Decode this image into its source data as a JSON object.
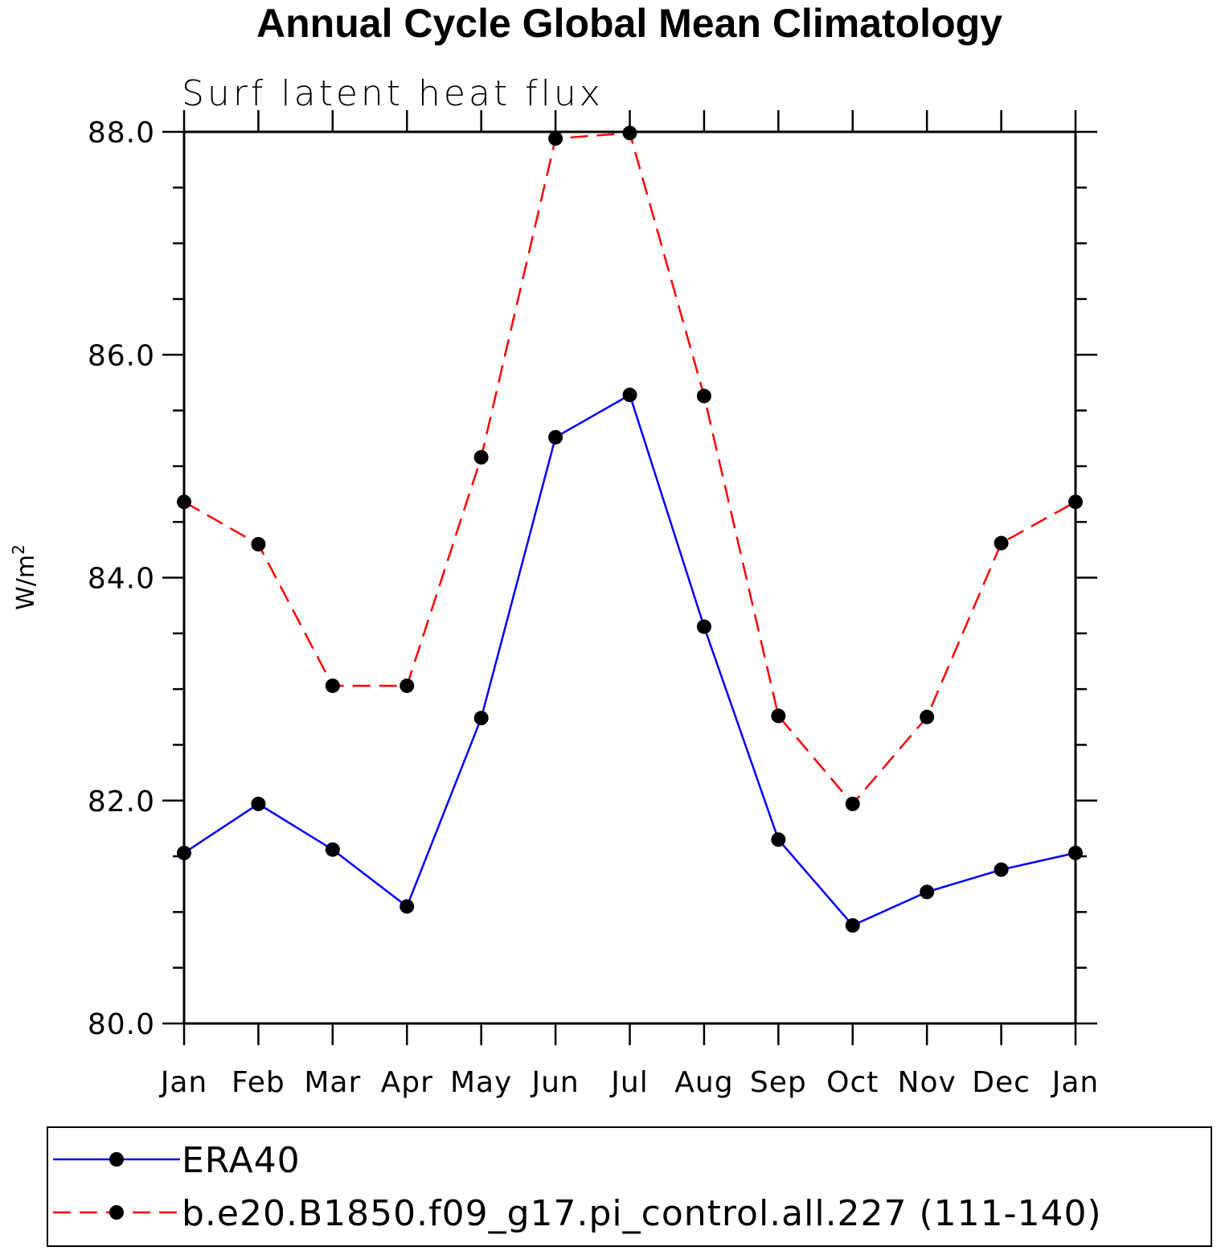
{
  "chart_data": {
    "type": "line",
    "title": "Annual Cycle Global Mean Climatology",
    "subtitle": "Surf latent heat flux",
    "ylabel": "W/m",
    "ylabel_sup": "2",
    "categories": [
      "Jan",
      "Feb",
      "Mar",
      "Apr",
      "May",
      "Jun",
      "Jul",
      "Aug",
      "Sep",
      "Oct",
      "Nov",
      "Dec",
      "Jan"
    ],
    "ylim": [
      80.0,
      88.0
    ],
    "yticks": [
      "80.0",
      "82.0",
      "84.0",
      "86.0",
      "88.0"
    ],
    "grid": false,
    "legend_position": "bottom",
    "series": [
      {
        "name": "ERA40",
        "color": "#0000ff",
        "dash": "solid",
        "marker": "filled-circle",
        "values": [
          81.53,
          81.97,
          81.56,
          81.05,
          82.74,
          85.26,
          85.64,
          83.56,
          81.65,
          80.88,
          81.18,
          81.38,
          81.53
        ]
      },
      {
        "name": "b.e20.B1850.f09_g17.pi_control.all.227 (111-140)",
        "color": "#ff0000",
        "dash": "dashed",
        "marker": "filled-circle",
        "values": [
          84.68,
          84.3,
          83.03,
          83.03,
          85.08,
          87.94,
          87.99,
          85.63,
          82.76,
          81.97,
          82.75,
          84.31,
          84.68
        ]
      }
    ]
  }
}
